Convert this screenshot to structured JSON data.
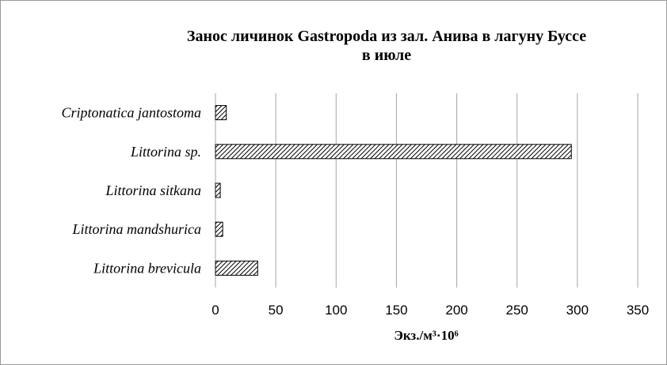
{
  "chart_data": {
    "type": "barh",
    "title": [
      "Занос личинок Gastropoda из зал. Анива в лагуну Буссе",
      "в июле"
    ],
    "categories": [
      "Criptonatica jantostoma",
      "Littorina sp.",
      "Littorina sitkana",
      "Littorina mandshurica",
      "Littorina brevicula"
    ],
    "values": [
      9,
      295,
      4,
      6,
      35
    ],
    "color": "#000000",
    "xlabel": "Экз./м³·10⁶",
    "xlim": [
      0,
      350
    ],
    "xticks": [
      0,
      50,
      100,
      150,
      200,
      250,
      300,
      350
    ],
    "grid": true
  }
}
